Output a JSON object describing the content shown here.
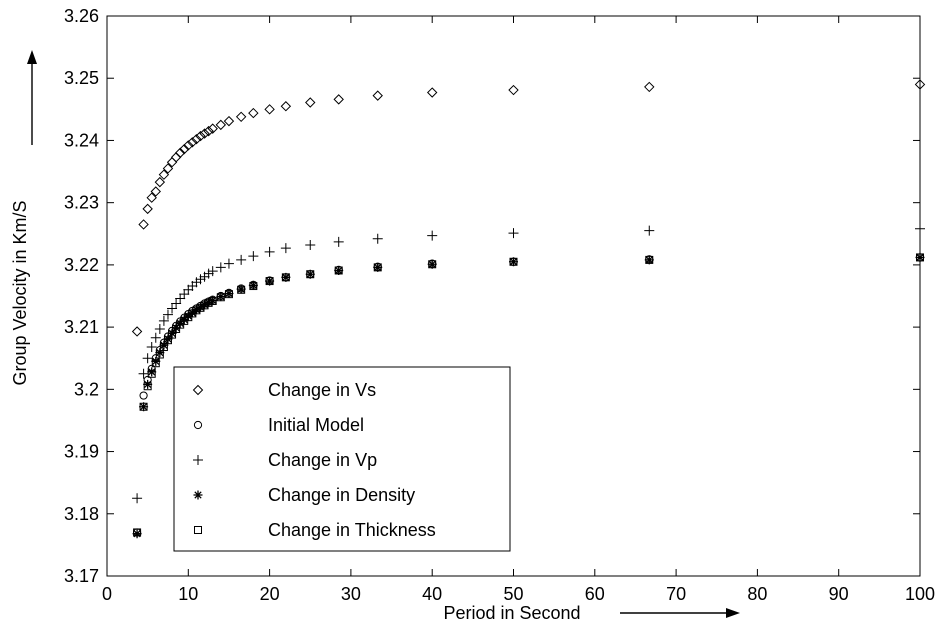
{
  "chart_data": {
    "type": "scatter",
    "xlabel": "Period in Second",
    "ylabel": "Group Velocity in Km/S",
    "xlim": [
      0,
      100
    ],
    "ylim": [
      3.17,
      3.26
    ],
    "xticks": [
      "0",
      "10",
      "20",
      "30",
      "40",
      "50",
      "60",
      "70",
      "80",
      "90",
      "100"
    ],
    "yticks": [
      "3.17",
      "3.18",
      "3.19",
      "3.2",
      "3.21",
      "3.22",
      "3.23",
      "3.24",
      "3.25",
      "3.26"
    ],
    "grid": false,
    "legend_position": "lower-left",
    "series": [
      {
        "name": "Change in Vs",
        "marker": "diamond",
        "x": [
          3.7,
          4.5,
          5.0,
          5.5,
          6.0,
          6.5,
          7.0,
          7.5,
          8.0,
          8.5,
          9.0,
          9.5,
          10.0,
          10.5,
          11.0,
          11.5,
          12.0,
          12.5,
          13.0,
          14.0,
          15.0,
          16.5,
          18.0,
          20.0,
          22.0,
          25.0,
          28.5,
          33.3,
          40.0,
          50.0,
          66.7,
          100.0
        ],
        "y": [
          3.2093,
          3.2265,
          3.229,
          3.2308,
          3.2318,
          3.2333,
          3.2345,
          3.2355,
          3.2365,
          3.2373,
          3.238,
          3.2386,
          3.2392,
          3.2397,
          3.2402,
          3.2407,
          3.2411,
          3.2415,
          3.2419,
          3.2425,
          3.2431,
          3.2438,
          3.2444,
          3.245,
          3.2455,
          3.2461,
          3.2466,
          3.2472,
          3.2477,
          3.2481,
          3.2486,
          3.249
        ]
      },
      {
        "name": "Initial Model",
        "marker": "circle",
        "x": [
          3.7,
          4.5,
          5.0,
          5.5,
          6.0,
          6.5,
          7.0,
          7.5,
          8.0,
          8.5,
          9.0,
          9.5,
          10.0,
          10.5,
          11.0,
          11.5,
          12.0,
          12.5,
          13.0,
          14.0,
          15.0,
          16.5,
          18.0,
          20.0,
          22.0,
          25.0,
          28.5,
          33.3,
          40.0,
          50.0,
          66.7,
          100.0
        ],
        "y": [
          3.177,
          3.199,
          3.2015,
          3.2033,
          3.205,
          3.2063,
          3.2075,
          3.2085,
          3.2094,
          3.2102,
          3.2109,
          3.2115,
          3.2121,
          3.2126,
          3.213,
          3.2134,
          3.2138,
          3.2141,
          3.2144,
          3.215,
          3.2155,
          3.2162,
          3.2168,
          3.2175,
          3.218,
          3.2185,
          3.2192,
          3.2197,
          3.2202,
          3.2205,
          3.2209,
          3.2212
        ]
      },
      {
        "name": "Change in Vp",
        "marker": "plus",
        "x": [
          3.7,
          4.5,
          5.0,
          5.5,
          6.0,
          6.5,
          7.0,
          7.5,
          8.0,
          8.5,
          9.0,
          9.5,
          10.0,
          10.5,
          11.0,
          11.5,
          12.0,
          12.5,
          13.0,
          14.0,
          15.0,
          16.5,
          18.0,
          20.0,
          22.0,
          25.0,
          28.5,
          33.3,
          40.0,
          50.0,
          66.7,
          100.0
        ],
        "y": [
          3.1825,
          3.2025,
          3.205,
          3.2068,
          3.2083,
          3.2097,
          3.211,
          3.212,
          3.213,
          3.2138,
          3.2146,
          3.2153,
          3.216,
          3.2166,
          3.2172,
          3.2177,
          3.2181,
          3.2186,
          3.219,
          3.2196,
          3.2202,
          3.2208,
          3.2214,
          3.2221,
          3.2227,
          3.2232,
          3.2237,
          3.2242,
          3.2247,
          3.2251,
          3.2255,
          3.2258
        ]
      },
      {
        "name": "Change in Density",
        "marker": "star",
        "x": [
          3.7,
          4.5,
          5.0,
          5.5,
          6.0,
          6.5,
          7.0,
          7.5,
          8.0,
          8.5,
          9.0,
          9.5,
          10.0,
          10.5,
          11.0,
          11.5,
          12.0,
          12.5,
          13.0,
          14.0,
          15.0,
          16.5,
          18.0,
          20.0,
          22.0,
          25.0,
          28.5,
          33.3,
          40.0,
          50.0,
          66.7,
          100.0
        ],
        "y": [
          3.1768,
          3.1972,
          3.2008,
          3.2028,
          3.2045,
          3.2059,
          3.2071,
          3.2081,
          3.209,
          3.2099,
          3.2106,
          3.2112,
          3.2118,
          3.2123,
          3.2128,
          3.2132,
          3.2136,
          3.214,
          3.2143,
          3.2149,
          3.2154,
          3.2161,
          3.2167,
          3.2174,
          3.218,
          3.2185,
          3.2191,
          3.2196,
          3.2201,
          3.2205,
          3.2208,
          3.2212
        ]
      },
      {
        "name": "Change in Thickness",
        "marker": "square",
        "x": [
          3.7,
          4.5,
          5.0,
          5.5,
          6.0,
          6.5,
          7.0,
          7.5,
          8.0,
          8.5,
          9.0,
          9.5,
          10.0,
          10.5,
          11.0,
          11.5,
          12.0,
          12.5,
          13.0,
          14.0,
          15.0,
          16.5,
          18.0,
          20.0,
          22.0,
          25.0,
          28.5,
          33.3,
          40.0,
          50.0,
          66.7,
          100.0
        ],
        "y": [
          3.177,
          3.1972,
          3.2005,
          3.2025,
          3.2042,
          3.2056,
          3.2068,
          3.2079,
          3.2088,
          3.2097,
          3.2104,
          3.211,
          3.2116,
          3.2122,
          3.2127,
          3.2131,
          3.2135,
          3.2139,
          3.2142,
          3.2148,
          3.2153,
          3.216,
          3.2166,
          3.2174,
          3.218,
          3.2185,
          3.2191,
          3.2196,
          3.2201,
          3.2205,
          3.2208,
          3.2212
        ]
      }
    ]
  }
}
